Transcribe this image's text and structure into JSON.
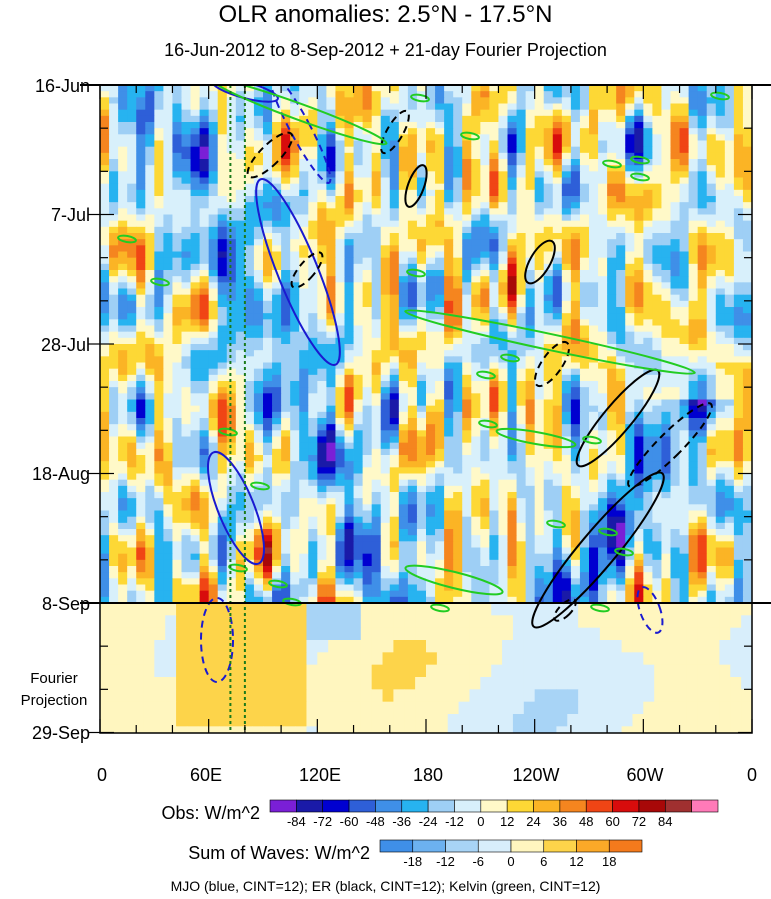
{
  "title": "OLR anomalies: 2.5°N - 17.5°N",
  "subtitle": "16-Jun-2012 to 8-Sep-2012 + 21-day Fourier Projection",
  "y_ticks": [
    "16-Jun",
    "7-Jul",
    "28-Jul",
    "18-Aug",
    "8-Sep",
    "29-Sep"
  ],
  "x_ticks": [
    "0",
    "60E",
    "120E",
    "180",
    "120W",
    "60W",
    "0"
  ],
  "projection_label": "Fourier\nProjection",
  "obs_legend": {
    "title": "Obs: W/m^2",
    "ticks": [
      "-84",
      "-72",
      "-60",
      "-48",
      "-36",
      "-24",
      "-12",
      "0",
      "12",
      "24",
      "36",
      "48",
      "60",
      "72",
      "84"
    ],
    "colors": [
      "#7a1fd6",
      "#1a1aa8",
      "#0000d0",
      "#2e5fd8",
      "#3f8fe8",
      "#27b3f0",
      "#9ecff5",
      "#d8f0fb",
      "#fff9c8",
      "#fdd835",
      "#fbb425",
      "#f5851f",
      "#f04515",
      "#d80c0c",
      "#a80808",
      "#a03030",
      "#ff7ab8"
    ]
  },
  "waves_legend": {
    "title": "Sum of Waves: W/m^2",
    "ticks": [
      "-18",
      "-12",
      "-6",
      "0",
      "6",
      "12",
      "18"
    ],
    "colors": [
      "#3f8fe8",
      "#6cb1f0",
      "#a8d4f6",
      "#d8eefb",
      "#fff6bf",
      "#fdd44a",
      "#fba928",
      "#f47a1c"
    ]
  },
  "footer": "MJO (blue, CINT=12); ER (black, CINT=12); Kelvin (green, CINT=12)",
  "colors": {
    "mjo": "#1a1ad0",
    "er": "#000000",
    "kelvin": "#22cc22",
    "obs_end_line": "#000000",
    "missing": "#b8b8b8"
  },
  "chart_data": {
    "type": "heatmap",
    "title": "OLR anomalies: 2.5°N - 17.5°N",
    "subtitle": "16-Jun-2012 to 8-Sep-2012 + 21-day Fourier Projection",
    "x_axis": {
      "ticks": [
        "0",
        "60E",
        "120E",
        "180",
        "120W",
        "60W",
        "0"
      ],
      "range_deg_east": [
        0,
        360
      ]
    },
    "y_axis": {
      "ticks": [
        "16-Jun",
        "7-Jul",
        "28-Jul",
        "18-Aug",
        "8-Sep",
        "29-Sep"
      ],
      "range": [
        "2012-06-16",
        "2012-09-29"
      ],
      "direction": "downward"
    },
    "observation_end": "2012-09-08",
    "units": "W/m^2",
    "obs_levels": [
      -84,
      -72,
      -60,
      -48,
      -36,
      -24,
      -12,
      0,
      12,
      24,
      36,
      48,
      60,
      72,
      84
    ],
    "waves_levels": [
      -18,
      -12,
      -6,
      0,
      6,
      12,
      18
    ],
    "reference_longitudes": [
      72,
      80
    ],
    "contour_interval": 12
  }
}
